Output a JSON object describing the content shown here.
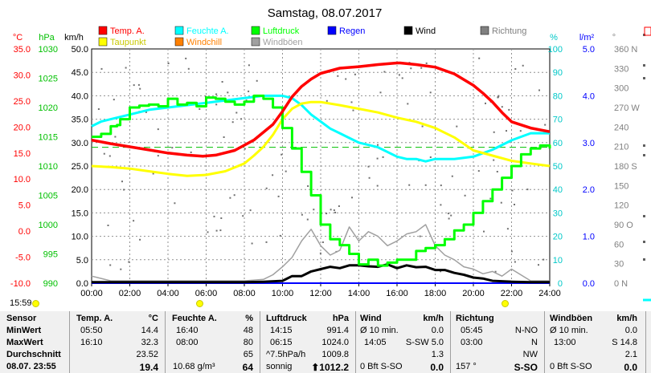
{
  "title": "Samstag, 08.07.2017",
  "time_label": "15:59",
  "legend": [
    {
      "label": "Temp. A.",
      "color": "#ff0000"
    },
    {
      "label": "Feuchte A.",
      "color": "#00ffff"
    },
    {
      "label": "Luftdruck",
      "color": "#00ff00"
    },
    {
      "label": "Regen",
      "color": "#0000ff"
    },
    {
      "label": "Wind",
      "color": "#000000"
    },
    {
      "label": "Richtung",
      "color": "#808080"
    },
    {
      "label": "Taupunkt",
      "color": "#ffff00"
    },
    {
      "label": "Windchill",
      "color": "#ff8000"
    },
    {
      "label": "Windböen",
      "color": "#a0a0a0"
    }
  ],
  "chart_data": {
    "type": "line",
    "x_ticks": [
      "00:00",
      "02:00",
      "04:00",
      "06:00",
      "08:00",
      "10:00",
      "12:00",
      "14:00",
      "16:00",
      "18:00",
      "20:00",
      "22:00",
      "24:00"
    ],
    "axes": {
      "temp": {
        "unit": "°C",
        "ticks": [
          "35.0",
          "30.0",
          "25.0",
          "20.0",
          "15.0",
          "10.0",
          "5.0",
          "0.0",
          "-5.0",
          "-10.0"
        ],
        "range": [
          -10,
          35
        ]
      },
      "pressure": {
        "unit": "hPa",
        "ticks": [
          "1030",
          "1025",
          "1020",
          "1015",
          "1010",
          "1005",
          "1000",
          "995",
          "990"
        ],
        "range": [
          990,
          1030
        ]
      },
      "wind": {
        "unit": "km/h",
        "ticks": [
          "50.0",
          "45.0",
          "40.0",
          "35.0",
          "30.0",
          "25.0",
          "20.0",
          "15.0",
          "10.0",
          "5.0",
          "0.0"
        ],
        "range": [
          0,
          50
        ]
      },
      "humidity": {
        "unit": "%",
        "ticks": [
          "100",
          "90",
          "80",
          "70",
          "60",
          "50",
          "40",
          "30",
          "20",
          "10",
          "0"
        ],
        "range": [
          0,
          100
        ]
      },
      "rain": {
        "unit": "l/m²",
        "ticks": [
          "5.0",
          "4.0",
          "3.0",
          "2.0",
          "1.0",
          "0.0"
        ],
        "range": [
          0,
          5
        ]
      },
      "direction": {
        "unit": "°",
        "ticks": [
          "360 N",
          "330",
          "300",
          "270 W",
          "240",
          "210",
          "180 S",
          "150",
          "120",
          "90 O",
          "60",
          "30",
          "0 N"
        ],
        "range": [
          0,
          360
        ]
      }
    },
    "series": [
      {
        "name": "Temp. A.",
        "axis": "temp",
        "color": "#ff0000",
        "x": [
          0,
          1,
          2,
          3,
          4,
          5,
          5.83,
          6.5,
          7.5,
          8.5,
          9.5,
          10,
          10.5,
          11,
          11.5,
          12,
          13,
          14,
          15,
          16,
          16.17,
          17,
          18,
          19,
          20,
          20.5,
          21,
          21.5,
          22,
          23,
          24
        ],
        "y": [
          17.5,
          16.8,
          16.2,
          15.6,
          15.0,
          14.6,
          14.4,
          14.6,
          15.5,
          17.5,
          20.5,
          23,
          25.8,
          27.8,
          29.2,
          30.3,
          31.3,
          31.6,
          32.0,
          32.3,
          32.3,
          32.0,
          31.5,
          30.2,
          28.0,
          26.5,
          24.8,
          22.8,
          21.0,
          19.8,
          19.1
        ]
      },
      {
        "name": "Taupunkt",
        "axis": "temp",
        "color": "#ffff00",
        "x": [
          0,
          1,
          2,
          3,
          4,
          5,
          6,
          7,
          8,
          8.5,
          9,
          9.5,
          10,
          10.5,
          11,
          11.5,
          12,
          13,
          14,
          15,
          16,
          17,
          18,
          19,
          20,
          21,
          22,
          23,
          24
        ],
        "y": [
          12.5,
          12.3,
          12.0,
          11.5,
          11.0,
          10.6,
          10.8,
          11.5,
          13.0,
          14.5,
          16.2,
          18.5,
          21.5,
          23.5,
          24.5,
          24.8,
          24.8,
          24.2,
          23.5,
          22.8,
          21.8,
          21.0,
          19.8,
          18.0,
          15.5,
          14.5,
          13.5,
          13.0,
          12.5
        ]
      },
      {
        "name": "Feuchte A.",
        "axis": "humidity",
        "color": "#00ffff",
        "x": [
          0,
          0.5,
          1,
          2,
          3,
          4,
          5,
          6,
          7,
          8,
          9,
          10,
          10.5,
          11,
          11.5,
          12,
          12.5,
          13,
          13.5,
          14,
          15,
          16,
          16.5,
          17,
          17.5,
          18,
          19,
          20,
          21,
          22,
          23,
          23.5,
          24
        ],
        "y": [
          67,
          69,
          70,
          72,
          74,
          75,
          76,
          77,
          78,
          79,
          80,
          80,
          79,
          76,
          72,
          69,
          66,
          64,
          62,
          60,
          58,
          54,
          53,
          53,
          52,
          53,
          53,
          54,
          57,
          61,
          64,
          64,
          64
        ]
      },
      {
        "name": "Luftdruck",
        "axis": "pressure",
        "color": "#00ff00",
        "x": [
          0,
          0.5,
          1,
          1.33,
          1.5,
          2,
          2.5,
          3,
          3.5,
          4,
          4.5,
          5,
          5.5,
          6,
          6.5,
          7,
          7.5,
          8,
          8.5,
          9,
          9.5,
          10,
          10.5,
          11,
          11.5,
          12,
          12.5,
          13,
          13.5,
          14,
          14.5,
          15,
          15.5,
          16,
          16.5,
          17,
          17.5,
          18,
          18.5,
          19,
          19.5,
          20,
          20.5,
          21,
          21.5,
          22,
          22.5,
          23,
          23.5,
          24
        ],
        "y": [
          1015,
          1015.5,
          1016.8,
          1017,
          1018,
          1020,
          1020.3,
          1020.5,
          1020.2,
          1021.5,
          1020.5,
          1020.8,
          1020.2,
          1021.7,
          1021.5,
          1021,
          1020.5,
          1021,
          1022,
          1021.5,
          1020,
          1016.5,
          1013,
          1009,
          1005,
          1000,
          997.5,
          996.5,
          995,
          993.2,
          994,
          993,
          993.5,
          994,
          994,
          995.5,
          996,
          996.5,
          997.5,
          999,
          1000,
          1002,
          1004,
          1006,
          1008,
          1010,
          1012,
          1013,
          1013.5,
          1013
        ]
      },
      {
        "name": "Wind",
        "axis": "wind",
        "color": "#000000",
        "x": [
          0,
          1,
          2,
          3,
          4,
          5,
          6,
          7,
          8,
          9,
          10,
          10.5,
          11,
          11.5,
          12,
          12.5,
          13,
          13.5,
          14,
          14.5,
          15,
          15.5,
          16,
          16.5,
          17,
          17.5,
          18,
          18.5,
          19,
          19.5,
          20,
          20.5,
          21,
          22,
          23,
          24
        ],
        "y": [
          0.2,
          0.2,
          0.2,
          0.2,
          0.2,
          0.2,
          0.2,
          0.2,
          0.2,
          0.3,
          0.5,
          1.5,
          1.5,
          2.5,
          3,
          3.5,
          3.2,
          3.8,
          3.8,
          3.6,
          3.5,
          4,
          3.2,
          3.8,
          3.4,
          3.5,
          2.8,
          2.8,
          2.2,
          1.8,
          1.2,
          1,
          0.5,
          0.3,
          0.2,
          0.2
        ]
      },
      {
        "name": "Windböen",
        "axis": "wind",
        "color": "#a0a0a0",
        "x": [
          0,
          1,
          2,
          3,
          4,
          5,
          6,
          7,
          8,
          9,
          9.5,
          10,
          10.5,
          11,
          11.5,
          12,
          12.5,
          13,
          13.5,
          14,
          14.5,
          15,
          15.5,
          16,
          16.5,
          17,
          17.5,
          18,
          18.5,
          19,
          19.5,
          20,
          20.5,
          21,
          21.5,
          22,
          23,
          24
        ],
        "y": [
          1.5,
          0.5,
          0.5,
          0.5,
          0.5,
          0.5,
          0.5,
          0.5,
          0.5,
          0.8,
          1.8,
          3.5,
          5.5,
          9,
          11.5,
          8,
          6,
          7,
          12,
          9,
          11,
          10,
          8,
          9,
          10.5,
          11,
          12.5,
          8,
          6,
          5,
          3.5,
          3,
          2,
          2.5,
          1.5,
          3,
          0.5,
          0.5
        ]
      },
      {
        "name": "Regen",
        "axis": "rain",
        "color": "#0000ff",
        "x": [
          0,
          24
        ],
        "y": [
          0,
          0
        ]
      }
    ],
    "reference_line": {
      "axis": "pressure",
      "value": 1013.2,
      "color": "#00c000",
      "style": "dashed"
    },
    "grid": true,
    "legend_position": "top"
  },
  "table": {
    "headers": {
      "sensor": "Sensor",
      "temp": "Temp. A.",
      "temp_unit": "°C",
      "hum": "Feuchte A.",
      "hum_unit": "%",
      "press": "Luftdruck",
      "press_unit": "hPa",
      "wind": "Wind",
      "wind_unit": "km/h",
      "dir": "Richtung",
      "gust": "Windböen",
      "gust_unit": "km/h"
    },
    "rows": [
      {
        "label": "MinWert",
        "temp_time": "05:50",
        "temp_val": "14.4",
        "hum_time": "16:40",
        "hum_val": "48",
        "press_time": "14:15",
        "press_val": "991.4",
        "wind_time": "Ø 10 min.",
        "wind_val": "0.0",
        "dir_time": "05:45",
        "dir_val": "N-NO",
        "gust_time": "Ø 10 min.",
        "gust_val": "0.0"
      },
      {
        "label": "MaxWert",
        "temp_time": "16:10",
        "temp_val": "32.3",
        "hum_time": "08:00",
        "hum_val": "80",
        "press_time": "06:15",
        "press_val": "1024.0",
        "wind_time": "14:05",
        "wind_val": "S-SW 5.0",
        "dir_time": "03:00",
        "dir_val": "N",
        "gust_time": "13:00",
        "gust_val": "S 14.8"
      },
      {
        "label": "Durchschnitt",
        "temp_time": "",
        "temp_val": "23.52",
        "hum_time": "",
        "hum_val": "65",
        "press_time": "^7.5hPa/h",
        "press_val": "1009.8",
        "wind_time": "",
        "wind_val": "1.3",
        "dir_time": "",
        "dir_val": "NW",
        "gust_time": "",
        "gust_val": "2.1"
      },
      {
        "label": "08.07. 23:55",
        "temp_time": "",
        "temp_val": "19.4",
        "hum_time": "10.68 g/m³",
        "hum_val": "64",
        "press_time": "sonnig",
        "press_val": "⬆1012.2",
        "wind_time": "0 Bft S-SO",
        "wind_val": "0.0",
        "dir_time": "157 °",
        "dir_val": "S-SO",
        "gust_time": "0 Bft S-SO",
        "gust_val": "0.0"
      }
    ]
  }
}
